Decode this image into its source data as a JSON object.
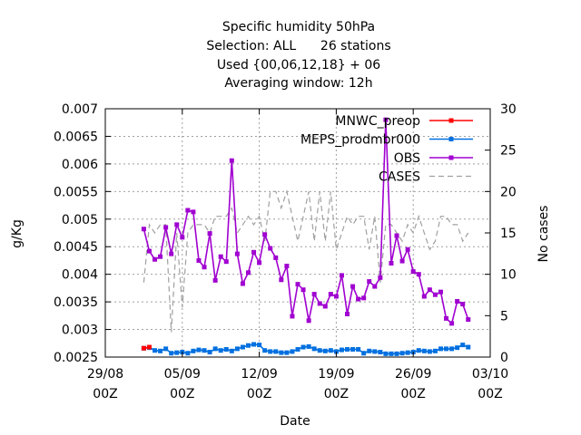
{
  "chart_data": {
    "type": "line",
    "title_lines": [
      "Specific humidity 50hPa",
      "Selection: ALL      26 stations",
      "Used {00,06,12,18} + 06",
      "Averaging window: 12h"
    ],
    "xlabel": "Date",
    "ylabel": "g/Kg",
    "y2label": "No cases",
    "xlim_days": [
      0,
      35
    ],
    "ylim": [
      0.0025,
      0.007
    ],
    "y2lim": [
      0,
      30
    ],
    "x_ticks": [
      {
        "day": 0,
        "line1": "29/08",
        "line2": "00Z"
      },
      {
        "day": 7,
        "line1": "05/09",
        "line2": "00Z"
      },
      {
        "day": 14,
        "line1": "12/09",
        "line2": "00Z"
      },
      {
        "day": 21,
        "line1": "19/09",
        "line2": "00Z"
      },
      {
        "day": 28,
        "line1": "26/09",
        "line2": "00Z"
      },
      {
        "day": 35,
        "line1": "03/10",
        "line2": "00Z"
      }
    ],
    "y_ticks": [
      "0.0025",
      "0.003",
      "0.0035",
      "0.004",
      "0.0045",
      "0.005",
      "0.0055",
      "0.006",
      "0.0065",
      "0.007"
    ],
    "y2_ticks": [
      "0",
      "5",
      "10",
      "15",
      "20",
      "25",
      "30"
    ],
    "grid": true,
    "legend_position": "top-right",
    "series": [
      {
        "name": "MNWC_preop",
        "axis": "y1",
        "color": "#ff0000",
        "marker": "square",
        "x": [
          3.5,
          4.0
        ],
        "values": [
          0.00266,
          0.00268
        ]
      },
      {
        "name": "MEPS_prodmbr000",
        "axis": "y1",
        "color": "#0070e0",
        "marker": "square",
        "x": [
          3.5,
          4.0,
          4.5,
          5.0,
          5.5,
          6.0,
          6.5,
          7.0,
          7.5,
          8.0,
          8.5,
          9.0,
          9.5,
          10.0,
          10.5,
          11.0,
          11.5,
          12.0,
          12.5,
          13.0,
          13.5,
          14.0,
          14.5,
          15.0,
          15.5,
          16.0,
          16.5,
          17.0,
          17.5,
          18.0,
          18.5,
          19.0,
          19.5,
          20.0,
          20.5,
          21.0,
          21.5,
          22.0,
          22.5,
          23.0,
          23.5,
          24.0,
          24.5,
          25.0,
          25.5,
          26.0,
          26.5,
          27.0,
          27.5,
          28.0,
          28.5,
          29.0,
          29.5,
          30.0,
          30.5,
          31.0,
          31.5,
          32.0,
          32.5,
          33.0
        ],
        "values": [
          0.00266,
          0.00267,
          0.00262,
          0.00261,
          0.00265,
          0.00257,
          0.00258,
          0.00259,
          0.00257,
          0.00261,
          0.00263,
          0.00262,
          0.00259,
          0.00265,
          0.00262,
          0.00264,
          0.00261,
          0.00265,
          0.00268,
          0.00271,
          0.00273,
          0.00272,
          0.00262,
          0.0026,
          0.0026,
          0.00258,
          0.00258,
          0.0026,
          0.00264,
          0.00268,
          0.00269,
          0.00265,
          0.00262,
          0.00261,
          0.00262,
          0.0026,
          0.00263,
          0.00264,
          0.00264,
          0.00264,
          0.00257,
          0.00261,
          0.0026,
          0.00259,
          0.00256,
          0.00256,
          0.00256,
          0.00257,
          0.00258,
          0.00259,
          0.00262,
          0.00261,
          0.0026,
          0.00261,
          0.00265,
          0.00265,
          0.00265,
          0.00267,
          0.00272,
          0.00268
        ]
      },
      {
        "name": "OBS",
        "axis": "y1",
        "color": "#a000d0",
        "marker": "square",
        "x": [
          3.5,
          4.0,
          4.5,
          5.0,
          5.5,
          6.0,
          6.5,
          7.0,
          7.5,
          8.0,
          8.5,
          9.0,
          9.5,
          10.0,
          10.5,
          11.0,
          11.5,
          12.0,
          12.5,
          13.0,
          13.5,
          14.0,
          14.5,
          15.0,
          15.5,
          16.0,
          16.5,
          17.0,
          17.5,
          18.0,
          18.5,
          19.0,
          19.5,
          20.0,
          20.5,
          21.0,
          21.5,
          22.0,
          22.5,
          23.0,
          23.5,
          24.0,
          24.5,
          25.0,
          25.5,
          26.0,
          26.5,
          27.0,
          27.5,
          28.0,
          28.5,
          29.0,
          29.5,
          30.0,
          30.5,
          31.0,
          31.5,
          32.0,
          32.5,
          33.0
        ],
        "values": [
          0.00482,
          0.00442,
          0.00427,
          0.00432,
          0.00485,
          0.00437,
          0.0049,
          0.00467,
          0.00516,
          0.00513,
          0.00425,
          0.00413,
          0.00474,
          0.00389,
          0.00432,
          0.00423,
          0.00606,
          0.00437,
          0.00383,
          0.00403,
          0.0044,
          0.00421,
          0.00472,
          0.00447,
          0.0043,
          0.0039,
          0.00415,
          0.00324,
          0.00382,
          0.00372,
          0.00316,
          0.00364,
          0.00347,
          0.00342,
          0.00364,
          0.0036,
          0.00398,
          0.00328,
          0.00378,
          0.00355,
          0.00357,
          0.00387,
          0.00378,
          0.00394,
          0.0068,
          0.0042,
          0.0047,
          0.00424,
          0.00445,
          0.00405,
          0.004,
          0.0036,
          0.00372,
          0.00363,
          0.00368,
          0.0032,
          0.00311,
          0.00351,
          0.00346,
          0.00318
        ]
      },
      {
        "name": "CASES",
        "axis": "y2",
        "color": "#a0a0a0",
        "marker": "none",
        "dashed": true,
        "x": [
          3.5,
          4.0,
          4.5,
          5.0,
          5.5,
          6.0,
          6.5,
          7.0,
          7.5,
          8.0,
          8.5,
          9.0,
          9.5,
          10.0,
          10.5,
          11.0,
          11.5,
          12.0,
          12.5,
          13.0,
          13.5,
          14.0,
          14.5,
          15.0,
          15.5,
          16.0,
          16.5,
          17.0,
          17.5,
          18.0,
          18.5,
          19.0,
          19.5,
          20.0,
          20.5,
          21.0,
          21.5,
          22.0,
          22.5,
          23.0,
          23.5,
          24.0,
          24.5,
          25.0,
          25.5,
          26.0,
          26.5,
          27.0,
          27.5,
          28.0,
          28.5,
          29.0,
          29.5,
          30.0,
          30.5,
          31.0,
          31.5,
          32.0,
          32.5,
          33.0
        ],
        "values": [
          9,
          16,
          15,
          16,
          16,
          3,
          15,
          6,
          15,
          16,
          16,
          16,
          15,
          17,
          17,
          17,
          18,
          15,
          16,
          17,
          16,
          17,
          14,
          20,
          20,
          18,
          20,
          17,
          14,
          17,
          20,
          14,
          20,
          14,
          20,
          13,
          15,
          17,
          16,
          17,
          17,
          13,
          17,
          9,
          16,
          16,
          15,
          14,
          16,
          15,
          17,
          15,
          13,
          14,
          17,
          17,
          16,
          16,
          14,
          15
        ]
      }
    ]
  }
}
